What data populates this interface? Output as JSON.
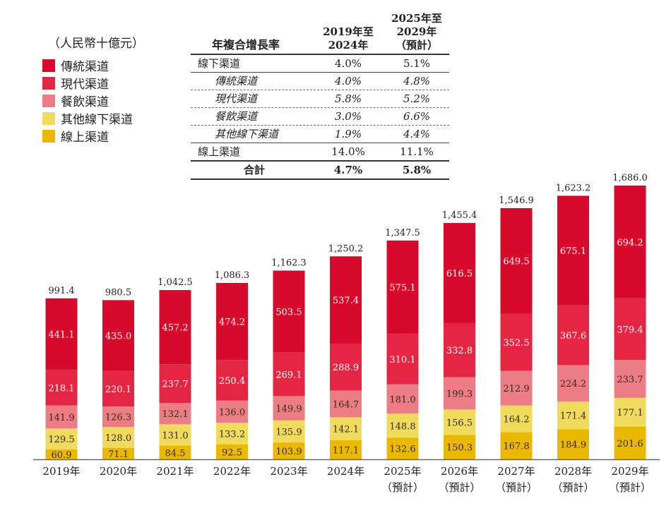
{
  "legend": {
    "unit": "（人民幣十億元）",
    "items": [
      {
        "label": "傳統渠道",
        "color": "#d80a2b"
      },
      {
        "label": "現代渠道",
        "color": "#e42643"
      },
      {
        "label": "餐飲渠道",
        "color": "#ec7d86"
      },
      {
        "label": "其他線下渠道",
        "color": "#f0db5c"
      },
      {
        "label": "線上渠道",
        "color": "#ebb800"
      }
    ]
  },
  "cagr_table": {
    "header": [
      "年複合增長率",
      "2019年至\n2024年",
      "2025年至\n2029年\n（預計）"
    ],
    "rows": [
      {
        "label": "線下渠道",
        "v1": "4.0%",
        "v2": "5.1%",
        "style": "normal",
        "border": "solid"
      },
      {
        "label": "傳統渠道",
        "v1": "4.0%",
        "v2": "4.8%",
        "style": "sub",
        "border": "dash"
      },
      {
        "label": "現代渠道",
        "v1": "5.8%",
        "v2": "5.2%",
        "style": "sub",
        "border": "dash"
      },
      {
        "label": "餐飲渠道",
        "v1": "3.0%",
        "v2": "6.6%",
        "style": "sub",
        "border": "dash"
      },
      {
        "label": "其他線下渠道",
        "v1": "1.9%",
        "v2": "4.4%",
        "style": "sub",
        "border": "solid"
      },
      {
        "label": "線上渠道",
        "v1": "14.0%",
        "v2": "11.1%",
        "style": "normal",
        "border": "thick"
      },
      {
        "label": "合計",
        "v1": "4.7%",
        "v2": "5.8%",
        "style": "bold",
        "border": "thick"
      }
    ]
  },
  "chart_data": {
    "type": "bar",
    "stacked": true,
    "categories": [
      "2019年",
      "2020年",
      "2021年",
      "2022年",
      "2023年",
      "2024年",
      "2025年",
      "2026年",
      "2027年",
      "2028年",
      "2029年"
    ],
    "category_sublabels": [
      "",
      "",
      "",
      "",
      "",
      "",
      "（預計）",
      "（預計）",
      "（預計）",
      "（預計）",
      "（預計）"
    ],
    "series": [
      {
        "name": "線上渠道",
        "color": "#ebb800",
        "values": [
          60.9,
          71.1,
          84.5,
          92.5,
          103.9,
          117.1,
          132.6,
          150.3,
          167.8,
          184.9,
          201.6
        ]
      },
      {
        "name": "其他線下渠道",
        "color": "#f0db5c",
        "values": [
          129.5,
          128.0,
          131.0,
          133.2,
          135.9,
          142.1,
          148.8,
          156.5,
          164.2,
          171.4,
          177.1
        ]
      },
      {
        "name": "餐飲渠道",
        "color": "#ec7d86",
        "values": [
          141.9,
          126.3,
          132.1,
          136.0,
          149.9,
          164.7,
          181.0,
          199.3,
          212.9,
          224.2,
          233.7
        ]
      },
      {
        "name": "現代渠道",
        "color": "#e42643",
        "values": [
          218.1,
          220.1,
          237.7,
          250.4,
          269.1,
          288.9,
          310.1,
          332.8,
          352.5,
          367.6,
          379.4
        ]
      },
      {
        "name": "傳統渠道",
        "color": "#d80a2b",
        "values": [
          441.1,
          435.0,
          457.2,
          474.2,
          503.5,
          537.4,
          575.1,
          616.5,
          649.5,
          675.1,
          694.2
        ]
      }
    ],
    "totals": [
      "991.4",
      "980.5",
      "1,042.5",
      "1,086.3",
      "1,162.3",
      "1,250.2",
      "1,347.5",
      "1,455.4",
      "1,546.9",
      "1,623.2",
      "1,686.0"
    ],
    "unit": "（人民幣十億元）",
    "ylim": [
      0,
      1686.0
    ],
    "grid": false,
    "legend_position": "top-left"
  }
}
